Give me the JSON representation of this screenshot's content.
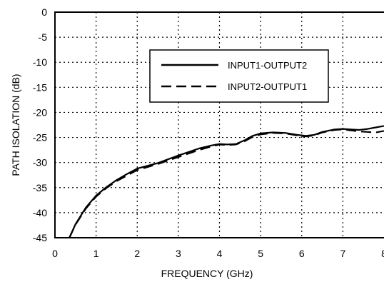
{
  "chart_data": {
    "type": "line",
    "xlabel": "FREQUENCY (GHz)",
    "ylabel": "PATH ISOLATION (dB)",
    "xlim": [
      0,
      8
    ],
    "ylim": [
      -45,
      0
    ],
    "x_ticks": [
      0,
      1,
      2,
      3,
      4,
      5,
      6,
      7,
      8
    ],
    "y_ticks": [
      0,
      -5,
      -10,
      -15,
      -20,
      -25,
      -30,
      -35,
      -40,
      -45
    ],
    "grid": true,
    "legend": {
      "placement": "top-right"
    },
    "series": [
      {
        "name": "INPUT1-OUTPUT2",
        "style": "solid",
        "x": [
          0.35,
          0.5,
          0.75,
          1.0,
          1.25,
          1.5,
          1.75,
          2.0,
          2.5,
          3.0,
          3.5,
          3.8,
          4.0,
          4.2,
          4.4,
          4.6,
          4.8,
          5.0,
          5.3,
          5.6,
          5.9,
          6.1,
          6.3,
          6.5,
          6.8,
          7.0,
          7.2,
          7.4,
          7.6,
          7.8,
          8.0
        ],
        "y": [
          -45,
          -42.3,
          -39.0,
          -36.6,
          -34.9,
          -33.5,
          -32.3,
          -31.2,
          -30.1,
          -28.6,
          -27.2,
          -26.6,
          -26.3,
          -26.4,
          -26.3,
          -25.6,
          -24.7,
          -24.2,
          -24.0,
          -24.1,
          -24.5,
          -24.7,
          -24.5,
          -23.9,
          -23.4,
          -23.3,
          -23.4,
          -23.5,
          -23.3,
          -23.0,
          -22.7
        ]
      },
      {
        "name": "INPUT2-OUTPUT1",
        "style": "dashed",
        "x": [
          0.35,
          0.5,
          0.75,
          1.0,
          1.25,
          1.5,
          1.75,
          2.0,
          2.5,
          3.0,
          3.5,
          3.8,
          4.0,
          4.2,
          4.4,
          4.6,
          4.8,
          5.0,
          5.3,
          5.6,
          5.9,
          6.1,
          6.3,
          6.5,
          6.8,
          7.0,
          7.2,
          7.4,
          7.6,
          7.8,
          8.0
        ],
        "y": [
          -45,
          -42.4,
          -39.2,
          -36.8,
          -35.1,
          -33.7,
          -32.6,
          -31.5,
          -30.3,
          -28.9,
          -27.5,
          -26.8,
          -26.4,
          -26.5,
          -26.4,
          -25.8,
          -24.9,
          -24.4,
          -24.1,
          -24.2,
          -24.6,
          -24.8,
          -24.6,
          -24.0,
          -23.5,
          -23.4,
          -23.6,
          -23.8,
          -23.9,
          -24.0,
          -23.7
        ]
      }
    ]
  }
}
